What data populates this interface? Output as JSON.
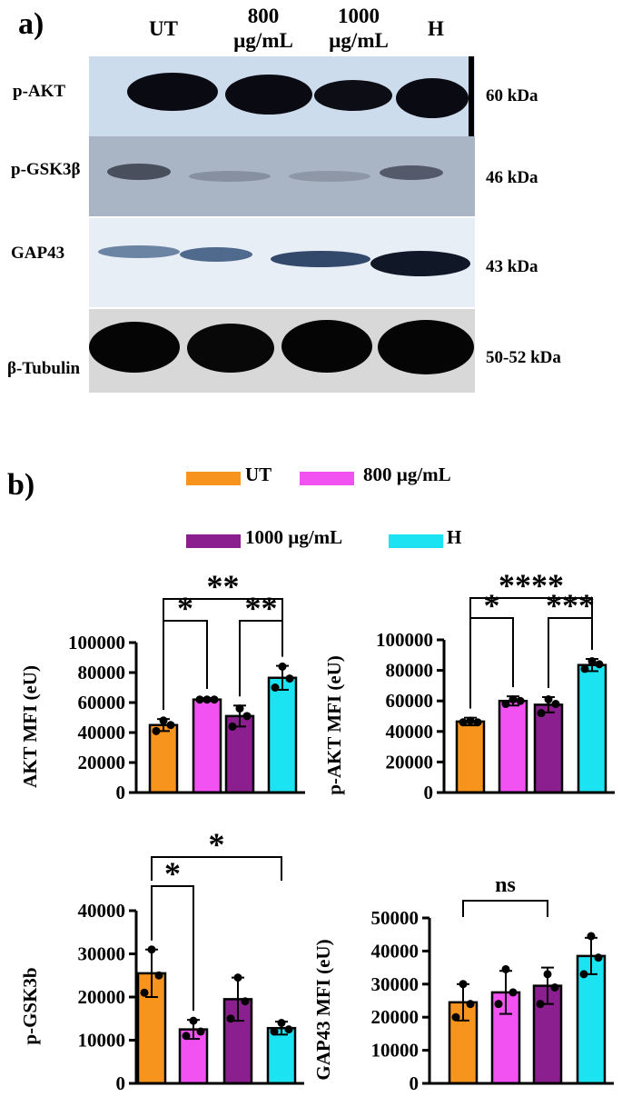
{
  "panel_a": {
    "label": "a)",
    "lanes": [
      "UT",
      "800\nµg/mL",
      "1000\nµg/mL",
      "H"
    ],
    "rows": [
      {
        "label": "p-AKT",
        "kda": "60 kDa"
      },
      {
        "label": "p-GSK3β",
        "kda": "46 kDa"
      },
      {
        "label": "GAP43",
        "kda": "43 kDa"
      },
      {
        "label": "β-Tubulin",
        "kda": "50-52 kDa"
      }
    ]
  },
  "panel_b": {
    "label": "b)",
    "legend": [
      {
        "name": "UT",
        "color": "#f7941d"
      },
      {
        "name": "800 µg/mL",
        "color": "#f352f3"
      },
      {
        "name": "1000 µg/mL",
        "color": "#8b1f8f"
      },
      {
        "name": "H",
        "color": "#1ce3f2"
      }
    ]
  },
  "chart_data": [
    {
      "type": "bar",
      "ylabel": "AKT MFI (eU)",
      "ylim": [
        0,
        100000
      ],
      "yticks": [
        "0",
        "20000",
        "40000",
        "60000",
        "80000",
        "100000"
      ],
      "values": [
        45000,
        62000,
        51000,
        76500
      ],
      "errors": [
        4000,
        1000,
        7000,
        8000
      ],
      "points": [
        [
          41000,
          45000,
          48000
        ],
        [
          62000,
          62000,
          62000
        ],
        [
          44000,
          51000,
          56000
        ],
        [
          70000,
          76000,
          84000
        ]
      ],
      "significance": [
        {
          "from": 0,
          "to": 3,
          "label": "**"
        },
        {
          "from": 0,
          "to": 1,
          "label": "*"
        },
        {
          "from": 2,
          "to": 3,
          "label": "**"
        }
      ]
    },
    {
      "type": "bar",
      "ylabel": "p-AKT MFI (eU)",
      "ylim": [
        0,
        100000
      ],
      "yticks": [
        "0",
        "20000",
        "40000",
        "60000",
        "80000",
        "100000"
      ],
      "values": [
        46500,
        60000,
        57500,
        83500
      ],
      "errors": [
        2500,
        3000,
        5000,
        4000
      ],
      "points": [
        [
          46000,
          46000,
          47000
        ],
        [
          58000,
          60000,
          61000
        ],
        [
          52000,
          58000,
          61000
        ],
        [
          81000,
          84000,
          86000
        ]
      ],
      "significance": [
        {
          "from": 0,
          "to": 3,
          "label": "****"
        },
        {
          "from": 0,
          "to": 1,
          "label": "*"
        },
        {
          "from": 2,
          "to": 3,
          "label": "***"
        }
      ]
    },
    {
      "type": "bar",
      "ylabel": "p-GSK3b",
      "ylim": [
        0,
        40000
      ],
      "yticks": [
        "0",
        "10000",
        "20000",
        "30000",
        "40000"
      ],
      "values": [
        25500,
        12500,
        19500,
        12800
      ],
      "errors": [
        5500,
        2200,
        5000,
        1500
      ],
      "points": [
        [
          21000,
          25000,
          31000
        ],
        [
          11000,
          12000,
          14500
        ],
        [
          15000,
          19000,
          24500
        ],
        [
          12000,
          12500,
          14000
        ]
      ],
      "significance": [
        {
          "from": 0,
          "to": 3,
          "label": "*"
        },
        {
          "from": 0,
          "to": 1,
          "label": "*"
        }
      ]
    },
    {
      "type": "bar",
      "ylabel": "GAP43 MFI (eU)",
      "ylim": [
        0,
        50000
      ],
      "yticks": [
        "0",
        "10000",
        "20000",
        "30000",
        "40000",
        "50000"
      ],
      "values": [
        24500,
        27500,
        29500,
        38500
      ],
      "errors": [
        5500,
        6500,
        5500,
        5500
      ],
      "points": [
        [
          20000,
          24000,
          30000
        ],
        [
          24000,
          27500,
          34500
        ],
        [
          24000,
          29000,
          33000
        ],
        [
          33000,
          38000,
          44500
        ]
      ],
      "significance": [
        {
          "from": 0,
          "to": 2,
          "label": "ns"
        }
      ]
    }
  ]
}
